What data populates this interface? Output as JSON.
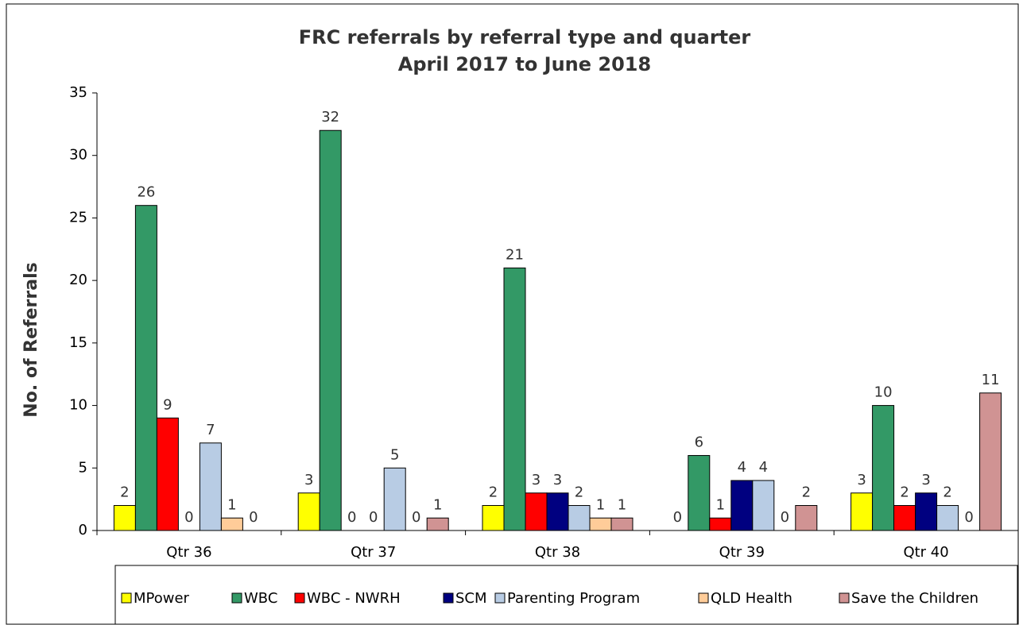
{
  "chart_data": {
    "type": "bar",
    "title": "FRC referrals by referral type and quarter",
    "subtitle": "April 2017 to June 2018",
    "y_label": "No. of Referrals",
    "categories": [
      "Qtr 36",
      "Qtr 37",
      "Qtr 38",
      "Qtr 39",
      "Qtr 40"
    ],
    "series": [
      {
        "name": "MPower",
        "color": "#ffff00",
        "values": [
          2,
          3,
          2,
          0,
          3
        ]
      },
      {
        "name": "WBC",
        "color": "#339966",
        "values": [
          26,
          32,
          21,
          6,
          10
        ]
      },
      {
        "name": "WBC - NWRH",
        "color": "#ff0000",
        "values": [
          9,
          0,
          3,
          1,
          2
        ]
      },
      {
        "name": "SCM",
        "color": "#000080",
        "values": [
          0,
          0,
          3,
          4,
          3
        ]
      },
      {
        "name": "Parenting Program",
        "color": "#b8cce4",
        "values": [
          7,
          5,
          2,
          4,
          2
        ]
      },
      {
        "name": "QLD Health",
        "color": "#ffcc99",
        "values": [
          1,
          0,
          1,
          0,
          0
        ]
      },
      {
        "name": "Save the Children",
        "color": "#d09393",
        "values": [
          0,
          1,
          1,
          2,
          11
        ]
      }
    ],
    "ylim": [
      0,
      35
    ],
    "yticks": [
      0,
      5,
      10,
      15,
      20,
      25,
      30,
      35
    ],
    "legend": "bottom"
  }
}
